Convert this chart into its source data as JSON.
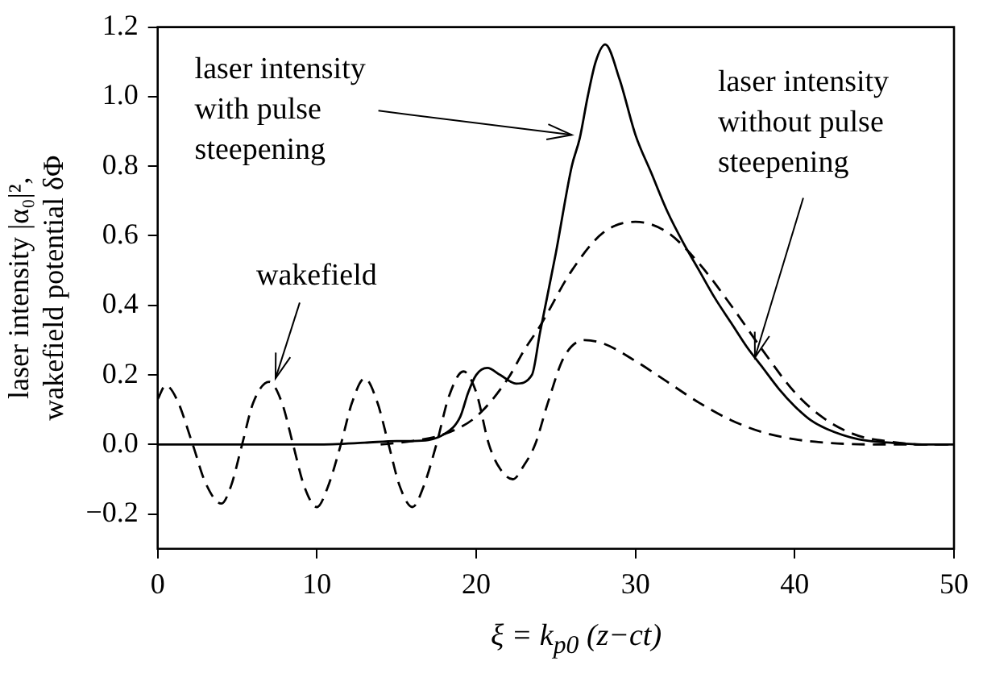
{
  "chart_data": {
    "type": "line",
    "xlabel": "ξ = k$_{p0}$ (z−ct)",
    "ylabel": "laser intensity |α₀|²,\nwakefield potential δΦ",
    "xlim": [
      0,
      50
    ],
    "ylim": [
      -0.3,
      1.2
    ],
    "xticks": [
      0,
      10,
      20,
      30,
      40,
      50
    ],
    "yticks": [
      {
        "value": -0.2,
        "label": "−0.2"
      },
      {
        "value": 0,
        "label": "0.0"
      },
      {
        "value": 0.2,
        "label": "0.2"
      },
      {
        "value": 0.4,
        "label": "0.4"
      },
      {
        "value": 0.6,
        "label": "0.6"
      },
      {
        "value": 0.8,
        "label": "0.8"
      },
      {
        "value": 1,
        "label": "1.0"
      },
      {
        "value": 1.2,
        "label": "1.2"
      }
    ],
    "grid": false,
    "legend": false,
    "marker": "none",
    "series": [
      {
        "color": "#000000",
        "line_style": "solid",
        "x": [
          0,
          5,
          10,
          13,
          15,
          16,
          18,
          19,
          19.5,
          20,
          20.7,
          21.5,
          22.5,
          23.5,
          24,
          25,
          26,
          26.5,
          27,
          27.5,
          28.1,
          29,
          30,
          31,
          32,
          33,
          34,
          35,
          36,
          37,
          38,
          39,
          40,
          41,
          42,
          44,
          46,
          48,
          50
        ],
        "values": [
          0,
          0,
          0,
          0.005,
          0.01,
          0.01,
          0.03,
          0.08,
          0.15,
          0.2,
          0.22,
          0.2,
          0.175,
          0.2,
          0.32,
          0.55,
          0.8,
          0.88,
          1.0,
          1.1,
          1.15,
          1.05,
          0.89,
          0.78,
          0.67,
          0.58,
          0.5,
          0.42,
          0.35,
          0.28,
          0.22,
          0.16,
          0.11,
          0.07,
          0.045,
          0.015,
          0.005,
          0,
          0
        ]
      },
      {
        "color": "#000000",
        "line_style": "dashed",
        "x": [
          14,
          16,
          18,
          20,
          22,
          23,
          24,
          26,
          28,
          30,
          32,
          34,
          36,
          38,
          40,
          42,
          44,
          46,
          48,
          50
        ],
        "values": [
          0,
          0.01,
          0.03,
          0.08,
          0.19,
          0.27,
          0.34,
          0.5,
          0.61,
          0.64,
          0.61,
          0.52,
          0.4,
          0.27,
          0.15,
          0.07,
          0.025,
          0.008,
          0,
          0
        ]
      },
      {
        "color": "#000000",
        "line_style": "dashed",
        "x": [
          0,
          0.5,
          1.2,
          2.2,
          3,
          4,
          4.6,
          5.3,
          6,
          7,
          7.8,
          8.5,
          9.2,
          10,
          10.7,
          11.5,
          12.2,
          13,
          13.8,
          14.5,
          15.2,
          16,
          16.7,
          17.5,
          18.3,
          19.2,
          20,
          20.8,
          21.5,
          22.3,
          23,
          23.7,
          24.5,
          25.5,
          26.8,
          28,
          30,
          32,
          34,
          36,
          38,
          40,
          42,
          45,
          50
        ],
        "values": [
          0.13,
          0.17,
          0.13,
          0,
          -0.11,
          -0.17,
          -0.12,
          0,
          0.12,
          0.18,
          0.12,
          0,
          -0.12,
          -0.18,
          -0.12,
          0,
          0.12,
          0.19,
          0.12,
          0,
          -0.12,
          -0.18,
          -0.12,
          0,
          0.14,
          0.21,
          0.15,
          0,
          -0.07,
          -0.1,
          -0.06,
          0,
          0.12,
          0.25,
          0.3,
          0.29,
          0.24,
          0.18,
          0.12,
          0.07,
          0.035,
          0.015,
          0.005,
          0,
          0
        ]
      }
    ],
    "annotations": [
      {
        "text": "laser intensity\nwith pulse\nsteepening",
        "x": 26,
        "y": 0.89
      },
      {
        "text": "laser intensity\nwithout pulse\nsteepening",
        "x": 37.5,
        "y": 0.25
      },
      {
        "text": "wakefield",
        "x": 7.4,
        "y": 0.19
      }
    ]
  }
}
